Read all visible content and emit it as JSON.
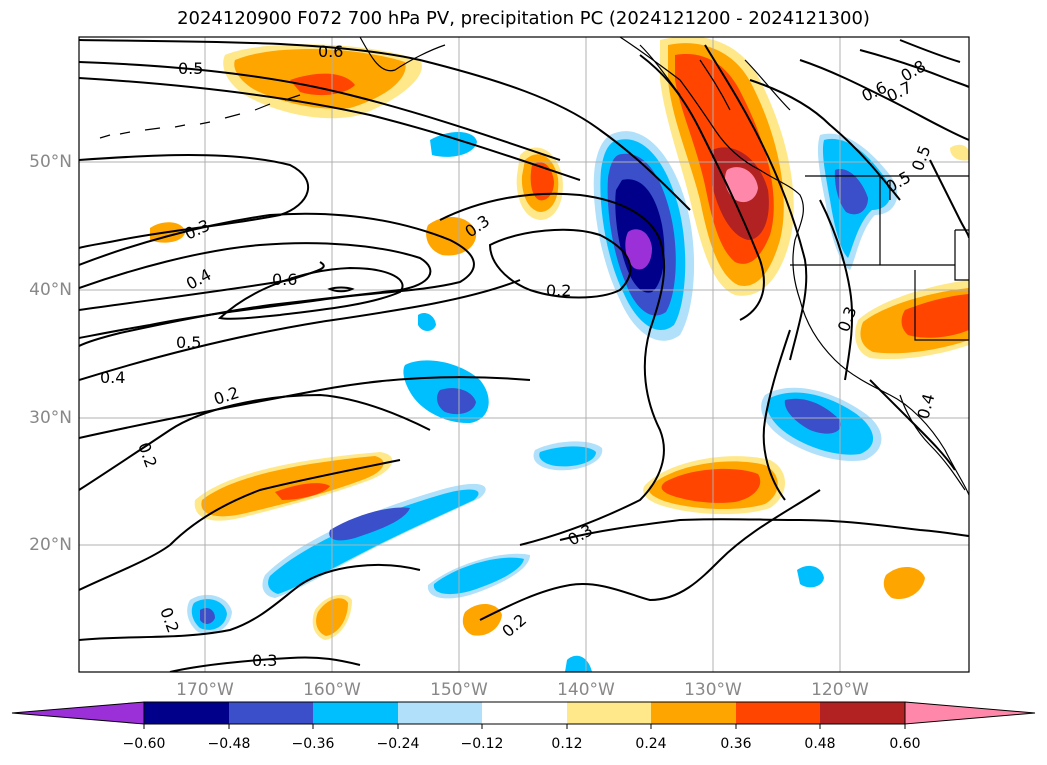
{
  "title": "2024120900 F072 700 hPa PV, precipitation PC (2024121200 - 2024121300)",
  "map": {
    "lat_labels": [
      "50°N",
      "40°N",
      "30°N",
      "20°N"
    ],
    "lon_labels": [
      "170°W",
      "160°W",
      "150°W",
      "140°W",
      "130°W",
      "120°W"
    ]
  },
  "contour_labels": [
    "0.6",
    "0.5",
    "0.3",
    "0.4",
    "0.6",
    "0.5",
    "0.4",
    "0.2",
    "0.2",
    "0.3",
    "0.2",
    "0.3",
    "0.2",
    "0.3",
    "0.2",
    "0.8",
    "0.7",
    "0.6",
    "0.5",
    "0.5",
    "0.3",
    "0.4"
  ],
  "colorbar": {
    "ticks": [
      "−0.60",
      "−0.48",
      "−0.36",
      "−0.24",
      "−0.12",
      "0.12",
      "0.24",
      "0.36",
      "0.48",
      "0.60"
    ],
    "colors": [
      "#9b30d9",
      "#00008b",
      "#3a4fc9",
      "#00bfff",
      "#b0e0fa",
      "#ffffff",
      "#ffe88a",
      "#ffa500",
      "#ff4500",
      "#b22222",
      "#ff88aa"
    ]
  }
}
